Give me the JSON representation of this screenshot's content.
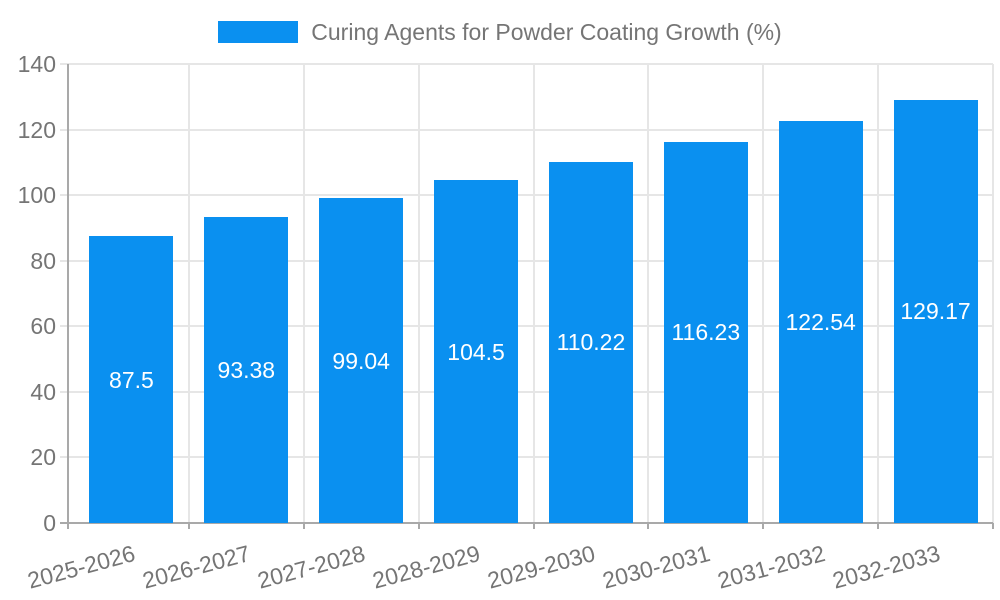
{
  "chart_data": {
    "type": "bar",
    "title": "Curing Agents for Powder Coating Growth (%)",
    "categories": [
      "2025-2026",
      "2026-2027",
      "2027-2028",
      "2028-2029",
      "2029-2030",
      "2030-2031",
      "2031-2032",
      "2032-2033"
    ],
    "values": [
      87.5,
      93.38,
      99.04,
      104.5,
      110.22,
      116.23,
      122.54,
      129.17
    ],
    "value_labels": [
      "87.5",
      "93.38",
      "99.04",
      "104.5",
      "110.22",
      "116.23",
      "122.54",
      "129.17"
    ],
    "ylim": [
      0,
      140
    ],
    "yticks": [
      0,
      20,
      40,
      60,
      80,
      100,
      120,
      140
    ],
    "xlabel": "",
    "ylabel": "",
    "grid": true,
    "legend_position": "top-center",
    "x_label_rotation_deg": -15,
    "colors": {
      "bar": "#0a90f0",
      "value_label": "#ffffff",
      "axis_text": "#757575",
      "grid_line": "#e6e6e6",
      "axis_line": "#a9a9a9",
      "background": "#ffffff"
    }
  }
}
